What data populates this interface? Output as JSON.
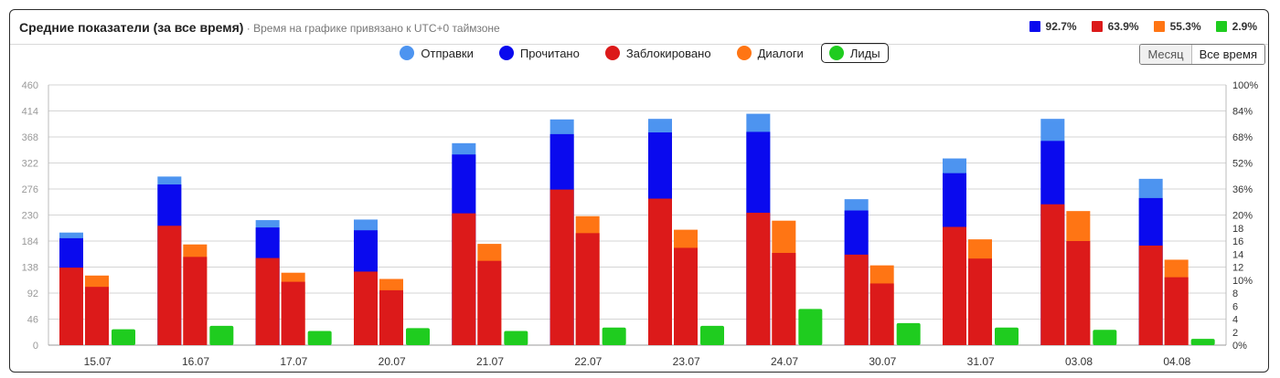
{
  "header": {
    "title": "Средние показатели (за все время)",
    "subtitle": " · Время на графике привязано к UTC+0 таймзоне"
  },
  "summary": [
    {
      "value": "92.7%",
      "color": "#0a0aee"
    },
    {
      "value": "63.9%",
      "color": "#dc1a1a"
    },
    {
      "value": "55.3%",
      "color": "#ff7514"
    },
    {
      "value": "2.9%",
      "color": "#1fcc1f"
    }
  ],
  "legend": [
    {
      "label": "Отправки",
      "color": "#4d94f0",
      "active": false
    },
    {
      "label": "Прочитано",
      "color": "#0a0aee",
      "active": false
    },
    {
      "label": "Заблокировано",
      "color": "#dc1a1a",
      "active": false
    },
    {
      "label": "Диалоги",
      "color": "#ff7514",
      "active": false
    },
    {
      "label": "Лиды",
      "color": "#1fcc1f",
      "active": true
    }
  ],
  "period_switch": {
    "month": "Месяц",
    "all_time": "Все время"
  },
  "chart_data": {
    "type": "bar",
    "categories": [
      "15.07",
      "16.07",
      "17.07",
      "20.07",
      "21.07",
      "22.07",
      "23.07",
      "24.07",
      "30.07",
      "31.07",
      "03.08",
      "04.08"
    ],
    "y_left_ticks": [
      "0",
      "46",
      "92",
      "138",
      "184",
      "230",
      "276",
      "322",
      "368",
      "414",
      "460"
    ],
    "y_right_ticks": [
      "0%",
      "2",
      "4",
      "6",
      "8",
      "10%",
      "12",
      "14",
      "16",
      "18",
      "20%",
      "36%",
      "52%",
      "68%",
      "84%",
      "100%"
    ],
    "ylim": [
      0,
      460
    ],
    "grid": true,
    "series": [
      {
        "name": "Отправки",
        "color": "#4d94f0",
        "values": [
          199,
          298,
          221,
          222,
          357,
          399,
          400,
          409,
          258,
          330,
          400,
          294
        ]
      },
      {
        "name": "Прочитано",
        "color": "#0a0aee",
        "values": [
          189,
          284,
          208,
          203,
          337,
          373,
          376,
          377,
          238,
          304,
          361,
          260
        ]
      },
      {
        "name": "Заблокировано",
        "color": "#dc1a1a",
        "values": [
          137,
          211,
          154,
          130,
          233,
          275,
          259,
          234,
          160,
          209,
          249,
          176
        ]
      },
      {
        "name": "Диалоги",
        "color": "#ff7514",
        "values": [
          123,
          178,
          128,
          117,
          179,
          228,
          204,
          220,
          141,
          187,
          237,
          151
        ]
      },
      {
        "name": "Заблокировано (диалоги)",
        "color": "#dc1a1a",
        "values": [
          103,
          156,
          112,
          97,
          149,
          198,
          172,
          163,
          109,
          153,
          184,
          120
        ]
      },
      {
        "name": "Лиды",
        "color": "#1fcc1f",
        "values": [
          28,
          34,
          25,
          30,
          25,
          31,
          34,
          64,
          39,
          31,
          27,
          11
        ]
      }
    ]
  }
}
